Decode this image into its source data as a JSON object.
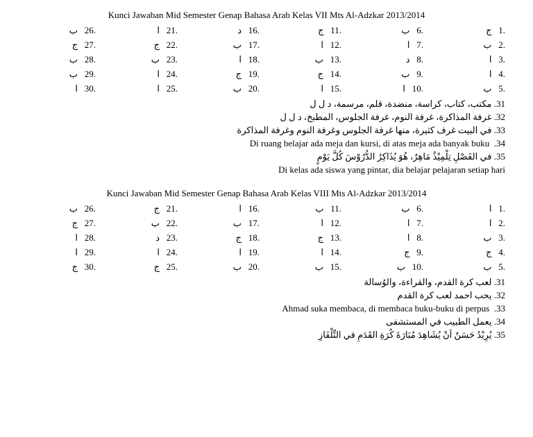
{
  "sections": [
    {
      "title": "Kunci Jawaban Mid Semester Genap Bahasa Arab Kelas VII Mts Al-Adzkar 2013/2014",
      "answers": [
        {
          "n": "1",
          "a": "ج"
        },
        {
          "n": "2",
          "a": "ب"
        },
        {
          "n": "3",
          "a": "ا"
        },
        {
          "n": "4",
          "a": "ا"
        },
        {
          "n": "5",
          "a": "ب"
        },
        {
          "n": "6",
          "a": "ب"
        },
        {
          "n": "7",
          "a": "ا"
        },
        {
          "n": "8",
          "a": "د"
        },
        {
          "n": "9",
          "a": "ب"
        },
        {
          "n": "10",
          "a": "ا"
        },
        {
          "n": "11",
          "a": "ج"
        },
        {
          "n": "12",
          "a": "ا"
        },
        {
          "n": "13",
          "a": "ب"
        },
        {
          "n": "14",
          "a": "ج"
        },
        {
          "n": "15",
          "a": "ا"
        },
        {
          "n": "16",
          "a": "د"
        },
        {
          "n": "17",
          "a": "ب"
        },
        {
          "n": "18",
          "a": "ا"
        },
        {
          "n": "19",
          "a": "ج"
        },
        {
          "n": "20",
          "a": "ب"
        },
        {
          "n": "21",
          "a": "ا"
        },
        {
          "n": "22",
          "a": "ج"
        },
        {
          "n": "23",
          "a": "ب"
        },
        {
          "n": "24",
          "a": "ا"
        },
        {
          "n": "25",
          "a": "ا"
        },
        {
          "n": "26",
          "a": "ب"
        },
        {
          "n": "27",
          "a": "ج"
        },
        {
          "n": "28",
          "a": "ب"
        },
        {
          "n": "29",
          "a": "ب"
        },
        {
          "n": "30",
          "a": "ا"
        }
      ],
      "long": [
        {
          "n": "31",
          "text": "مكتب، كتاب، كراسة، منضدة، قلم، مرسمة، د ل ل",
          "lang": "ar"
        },
        {
          "n": "32",
          "text": "غرفة المذاكرة، غرفة النوم، غرفة الجلوس، المطبخ، د ل ل",
          "lang": "ar"
        },
        {
          "n": "33",
          "text": "في البيت غرف كثيرة، منها غرفة الجلوس وغرفة النوم وغرفة المذاكرة",
          "lang": "ar"
        },
        {
          "n": "34",
          "text": "Di ruang belajar ada meja dan kursi, di atas meja ada banyak buku",
          "lang": "ltr"
        },
        {
          "n": "35",
          "text": "في الفَصْلِ تِلْمِيْذٌ مَاهِرٌ، هُوَ يُذَاكِرُ الدُّرُوْسَ كُلَّ يَوْمٍ",
          "lang": "ar"
        },
        {
          "n": "",
          "text": "Di kelas ada siswa yang pintar, dia belajar pelajaran setiap hari",
          "lang": "ltr"
        }
      ]
    },
    {
      "title": "Kunci Jawaban Mid Semester Genap Bahasa Arab Kelas VIII Mts Al-Adzkar 2013/2014",
      "answers": [
        {
          "n": "1",
          "a": "ا"
        },
        {
          "n": "2",
          "a": "ا"
        },
        {
          "n": "3",
          "a": "ب"
        },
        {
          "n": "4",
          "a": "ج"
        },
        {
          "n": "5",
          "a": "ب"
        },
        {
          "n": "6",
          "a": "ب"
        },
        {
          "n": "7",
          "a": "ا"
        },
        {
          "n": "8",
          "a": "ا"
        },
        {
          "n": "9",
          "a": "ج"
        },
        {
          "n": "10",
          "a": "ب"
        },
        {
          "n": "11",
          "a": "ب"
        },
        {
          "n": "12",
          "a": "ا"
        },
        {
          "n": "13",
          "a": "ج"
        },
        {
          "n": "14",
          "a": "ا"
        },
        {
          "n": "15",
          "a": "ب"
        },
        {
          "n": "16",
          "a": "ا"
        },
        {
          "n": "17",
          "a": "ب"
        },
        {
          "n": "18",
          "a": "ج"
        },
        {
          "n": "19",
          "a": "ا"
        },
        {
          "n": "20",
          "a": "ب"
        },
        {
          "n": "21",
          "a": "ج"
        },
        {
          "n": "22",
          "a": "ب"
        },
        {
          "n": "23",
          "a": "د"
        },
        {
          "n": "24",
          "a": "ا"
        },
        {
          "n": "25",
          "a": "ج"
        },
        {
          "n": "26",
          "a": "ب"
        },
        {
          "n": "27",
          "a": "ج"
        },
        {
          "n": "28",
          "a": "ا"
        },
        {
          "n": "29",
          "a": "ا"
        },
        {
          "n": "30",
          "a": "ج"
        }
      ],
      "long": [
        {
          "n": "31",
          "text": "لعب كرة القدم، والقراءة، والوُسالة",
          "lang": "ar"
        },
        {
          "n": "32",
          "text": "يحب احمد لعب كرة القدم",
          "lang": "ar"
        },
        {
          "n": "33",
          "text": "Ahmad suka membaca, di membaca buku-buku di perpus",
          "lang": "ltr"
        },
        {
          "n": "34",
          "text": "يعمل الطبيب في المستشفى",
          "lang": "ar"
        },
        {
          "n": "35",
          "text": "يُرِيْدُ حَسَنٌ اَنْ يُشَاهِدَ مُبَارَةَ كُرَةِ القَدَمِ في التِّلْفَازِ",
          "lang": "ar"
        }
      ]
    }
  ]
}
